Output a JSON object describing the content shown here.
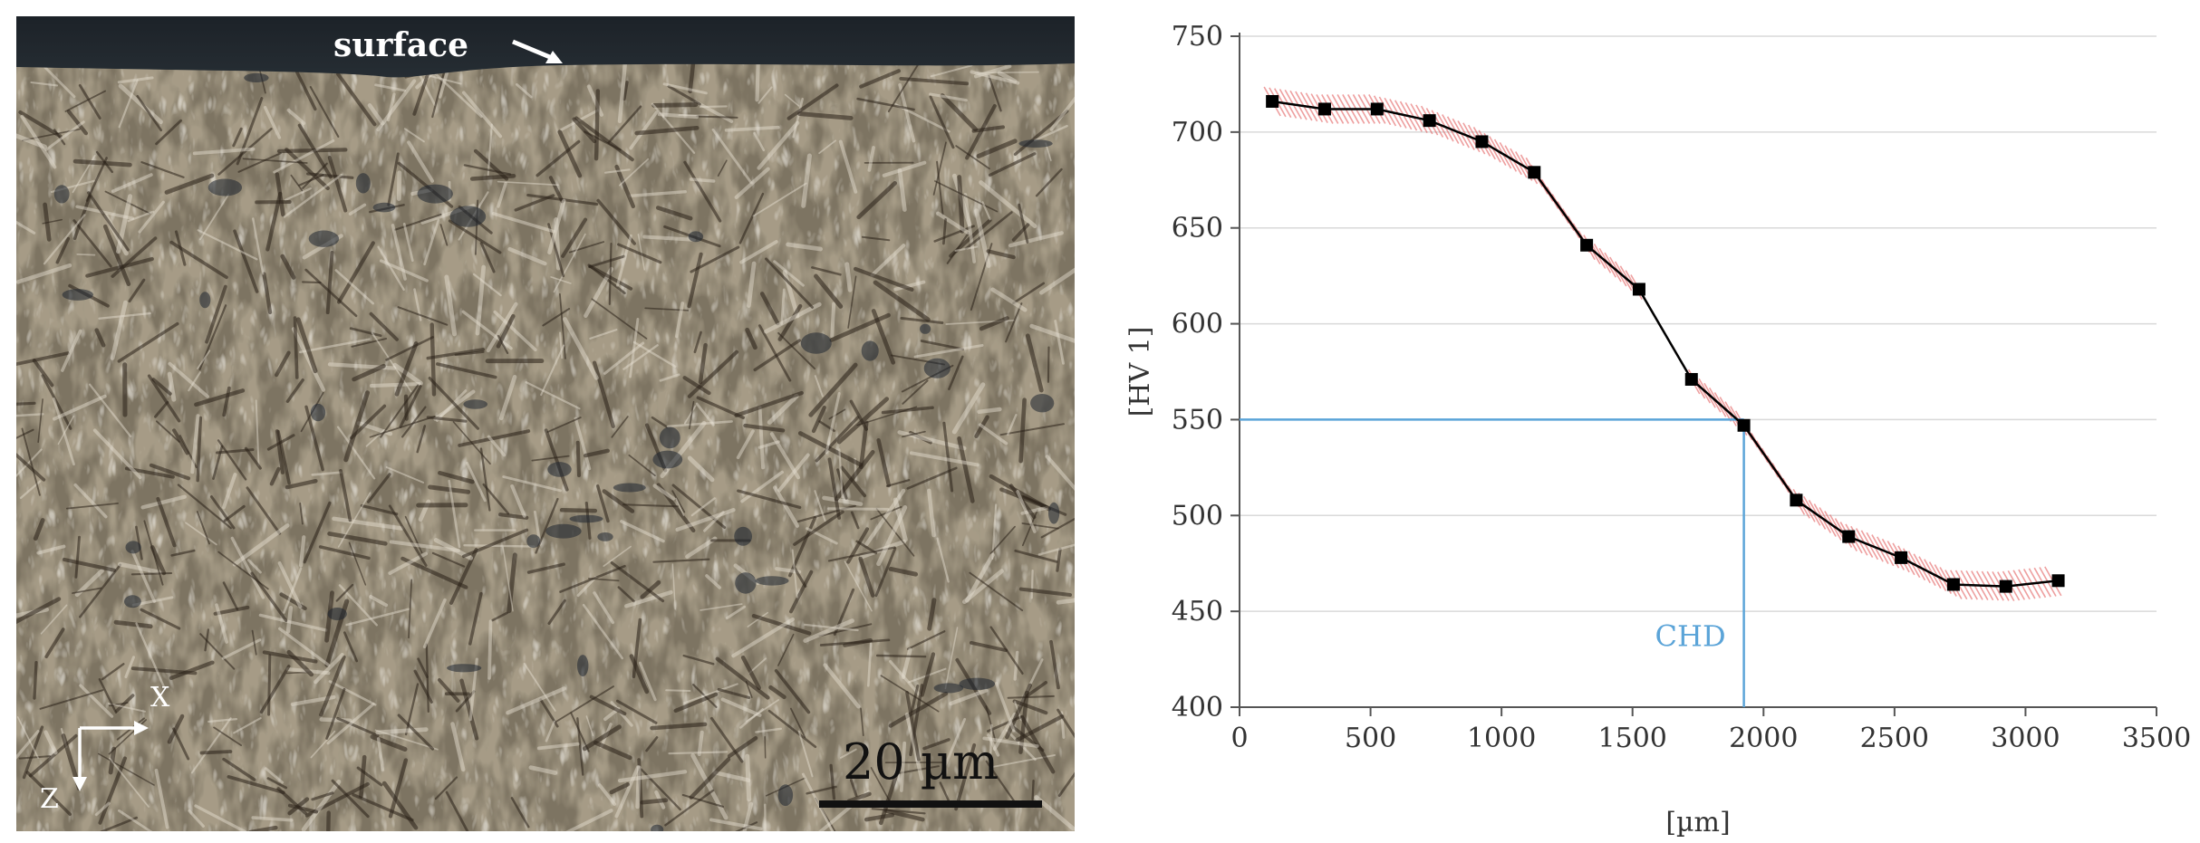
{
  "micrograph": {
    "surface_label": "surface",
    "scale_label": "20 µm",
    "axis_x_label": "X",
    "axis_z_label": "Z"
  },
  "chart_data": {
    "type": "line",
    "xlabel": "[µm]",
    "ylabel": "[HV 1]",
    "xlim": [
      0,
      3500
    ],
    "ylim": [
      400,
      750
    ],
    "xticks": [
      0,
      500,
      1000,
      1500,
      2000,
      2500,
      3000,
      3500
    ],
    "yticks": [
      400,
      450,
      500,
      550,
      600,
      650,
      700,
      750
    ],
    "grid": "horizontal",
    "series": [
      {
        "x": [
          125,
          325,
          525,
          725,
          925,
          1125,
          1325,
          1525,
          1725,
          1925,
          2125,
          2325,
          2525,
          2725,
          2925,
          3125
        ],
        "y": [
          716,
          712,
          712,
          706,
          695,
          679,
          641,
          618,
          571,
          547,
          508,
          489,
          478,
          464,
          463,
          466
        ],
        "color": "#000000",
        "band_color": "#e05050"
      }
    ],
    "annotation": {
      "label": "CHD",
      "x": 1925,
      "y": 550,
      "color": "#5ba4d8"
    }
  }
}
